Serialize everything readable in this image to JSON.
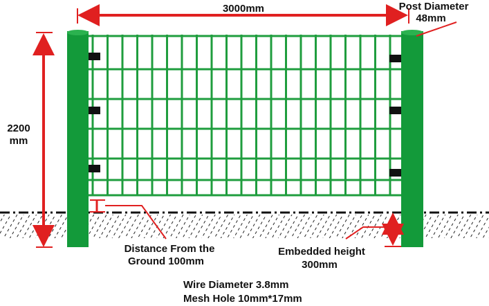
{
  "dimensions": {
    "width": "3000mm",
    "post_label": "Post Diameter",
    "post_value": "48mm",
    "height_value": "2200",
    "height_unit": "mm"
  },
  "annotations": {
    "distance_line1": "Distance From the",
    "distance_line2": "Ground 100mm",
    "embedded_line1": "Embedded height",
    "embedded_line2": "300mm"
  },
  "specs": {
    "wire": "Wire Diameter  3.8mm",
    "mesh": "Mesh Hole 10mm*17mm"
  }
}
